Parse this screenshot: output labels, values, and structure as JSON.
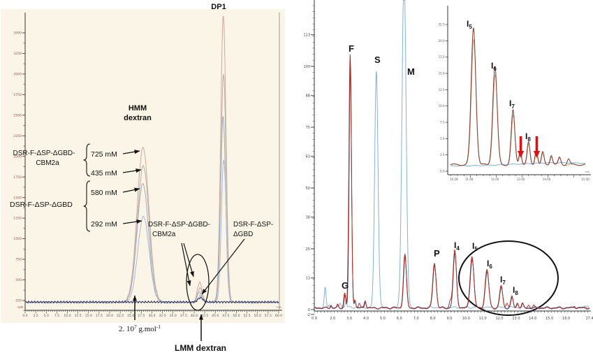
{
  "figure_type": "dual-chromatogram-figure",
  "colors": {
    "left_bg": "#faf5e6",
    "left_traces": [
      "#d2a79e",
      "#b7afa4",
      "#9fa9bd",
      "#aab9d6",
      "#31315e"
    ],
    "right_blue": "#85b1d4",
    "right_red": "#b03026",
    "right_navy": "#3c3c64",
    "inset_red": "#8a3a2a",
    "inset_tan": "#c3a488",
    "red_arrow": "#dd1111",
    "axis": "#333333",
    "left_ytick_color": "#96524a",
    "ellipse_stroke": "#111111"
  },
  "left_panel": {
    "x_unit": "min",
    "x_ticks": [
      "0.0",
      "2.5",
      "5.0",
      "7.5",
      "10.0",
      "12.5",
      "15.0",
      "17.5",
      "20.0",
      "22.5",
      "25.0",
      "27.5",
      "30.0",
      "32.5",
      "35.0",
      "37.5",
      "40.0",
      "42.5",
      "45.0",
      "47.5",
      "50.0",
      "52.5",
      "55.0",
      "57.5",
      "60.0"
    ],
    "y_ticks": [
      "3500",
      "3250",
      "3000",
      "2750",
      "2500",
      "2250",
      "2000",
      "1750",
      "1500",
      "1250",
      "1000",
      "750",
      "500",
      "250"
    ],
    "y_tick_bottom": "-100",
    "annotations": {
      "dp1": "DP1",
      "hmm_line1": "HMM",
      "hmm_line2": "dextran",
      "enzyme1_line1": "DSR-F-ΔSP-ΔGBD-",
      "enzyme1_line2": "CBM2a",
      "enzyme2": "DSR-F-ΔSP-ΔGBD",
      "conc_725": "725 mM",
      "conc_435": "435 mM",
      "conc_580": "580 mM",
      "conc_292": "292 mM",
      "callout1_line1": "DSR-F-ΔSP-ΔGBD-",
      "callout1_line2": "CBM2a",
      "callout2_line1": "DSR-F-ΔSP-",
      "callout2_line2": "ΔGBD",
      "mass": {
        "coef": "2. 10",
        "exp": "7",
        "unit": " g.mol",
        "unit_exp": "-1"
      },
      "lmm": "LMM dextran"
    }
  },
  "right_panel": {
    "x_unit": "min",
    "x_ticks": [
      "0.9",
      "2.0",
      "3.0",
      "4.0",
      "5.0",
      "6.0",
      "7.0",
      "8.0",
      "9.0",
      "10.0",
      "11.0",
      "12.0",
      "13.0",
      "14.0",
      "15.0",
      "16.0",
      "17.4"
    ],
    "y_ticks": [
      "113",
      "100",
      "88",
      "75",
      "63",
      "50",
      "38",
      "25",
      "13",
      "0",
      "-2"
    ],
    "peak_labels": [
      {
        "text": "G"
      },
      {
        "text": "F"
      },
      {
        "text": "S"
      },
      {
        "text": "M"
      },
      {
        "text": "P"
      },
      {
        "base": "I",
        "sub": "4"
      },
      {
        "base": "I",
        "sub": "5"
      },
      {
        "base": "I",
        "sub": "6"
      },
      {
        "base": "I",
        "sub": "7"
      },
      {
        "base": "I",
        "sub": "8"
      }
    ]
  },
  "inset_panel": {
    "x_unit": "min",
    "x_ticks": [
      "10.28",
      "11.00",
      "12.00",
      "13.00",
      "14.00",
      "15.50"
    ],
    "y_ticks": [
      "22.5",
      "20.0",
      "17.5",
      "15.0",
      "12.5",
      "10.0",
      "7.5",
      "5.0",
      "2.5",
      "0.0"
    ],
    "peak_labels": [
      {
        "base": "I",
        "sub": "5"
      },
      {
        "base": "I",
        "sub": "6"
      },
      {
        "base": "I",
        "sub": "7"
      },
      {
        "base": "I",
        "sub": "8"
      }
    ]
  },
  "chart_data": [
    {
      "name": "left-sec-chromatogram",
      "type": "line",
      "xlabel_unit": "min",
      "x_range": [
        0,
        60
      ],
      "y_range": [
        -100,
        3600
      ],
      "grid": false,
      "peaks_legend": "HMM dextran ~27.9 min, LMM dextran ~41.3 min, DP1 ~46.9 min",
      "series": [
        {
          "name": "725 mM (DSR-F-dSP-dGBD-CBM2a)",
          "baseline": 20,
          "peaks": [
            [
              27.9,
              1990,
              1.4
            ],
            [
              41.3,
              260,
              0.55
            ],
            [
              46.9,
              3680,
              0.62
            ]
          ]
        },
        {
          "name": "435 mM (DSR-F-dSP-dGBD-CBM2a)",
          "baseline": 20,
          "peaks": [
            [
              27.95,
              1755,
              1.38
            ],
            [
              41.35,
              185,
              0.55
            ],
            [
              46.95,
              2935,
              0.6
            ]
          ]
        },
        {
          "name": "580 mM (DSR-F-dSP-dGBD)",
          "baseline": 20,
          "peaks": [
            [
              27.85,
              1525,
              1.36
            ],
            [
              41.25,
              135,
              0.5
            ],
            [
              46.85,
              2385,
              0.58
            ]
          ]
        },
        {
          "name": "292 mM (DSR-F-dSP-dGBD)",
          "baseline": 20,
          "peaks": [
            [
              28.0,
              1105,
              1.34
            ],
            [
              41.4,
              90,
              0.5
            ],
            [
              47.0,
              1835,
              0.56
            ]
          ]
        },
        {
          "name": "baseline",
          "baseline": 25,
          "peaks": [
            [
              41.5,
              55,
              0.6
            ]
          ]
        }
      ]
    },
    {
      "name": "right-hpaec-chromatogram",
      "type": "line",
      "xlabel_unit": "min",
      "x_range": [
        0.9,
        17.4
      ],
      "y_range": [
        -2,
        127
      ],
      "grid": false,
      "series": [
        {
          "name": "standards-blue",
          "baseline": 0.9,
          "peaks": [
            [
              1.55,
              8,
              0.05
            ],
            [
              1.8,
              1.2,
              0.04
            ],
            [
              2.45,
              1.8,
              0.05
            ],
            [
              2.8,
              2.2,
              0.05
            ],
            [
              4.62,
              97.5,
              0.1
            ],
            [
              6.28,
              140,
              0.12
            ]
          ]
        },
        {
          "name": "sample-red",
          "baseline": 0.7,
          "peaks": [
            [
              1.9,
              1.2,
              0.04
            ],
            [
              2.3,
              1.2,
              0.04
            ],
            [
              2.72,
              6.2,
              0.055
            ],
            [
              3.05,
              104,
              0.075
            ],
            [
              3.33,
              3.4,
              0.05
            ],
            [
              3.6,
              1.8,
              0.05
            ],
            [
              3.95,
              3.2,
              0.055
            ],
            [
              6.33,
              22,
              0.09
            ],
            [
              8.1,
              18.5,
              0.1
            ],
            [
              9.05,
              2.8,
              0.06
            ],
            [
              9.32,
              23.5,
              0.1
            ],
            [
              10.35,
              21.3,
              0.11
            ],
            [
              11.25,
              15.6,
              0.11
            ],
            [
              12.1,
              9.2,
              0.09
            ],
            [
              12.45,
              2.2,
              0.06
            ],
            [
              12.75,
              4.7,
              0.07
            ],
            [
              13.08,
              2.1,
              0.06
            ],
            [
              13.38,
              1.7,
              0.06
            ],
            [
              13.75,
              1.2,
              0.06
            ],
            [
              14.05,
              1.0,
              0.05
            ],
            [
              16.5,
              0.9,
              0.05
            ]
          ]
        },
        {
          "name": "sample-navy",
          "baseline": 0.6,
          "peaks": [
            [
              1.9,
              1.0,
              0.04
            ],
            [
              2.3,
              1.0,
              0.04
            ],
            [
              2.74,
              5.6,
              0.055
            ],
            [
              3.06,
              100,
              0.07
            ],
            [
              3.34,
              3.0,
              0.05
            ],
            [
              3.96,
              2.8,
              0.05
            ],
            [
              6.34,
              21,
              0.09
            ],
            [
              8.11,
              17.8,
              0.1
            ],
            [
              9.33,
              22.3,
              0.1
            ],
            [
              10.36,
              20.2,
              0.11
            ],
            [
              11.26,
              14.8,
              0.11
            ],
            [
              12.11,
              8.6,
              0.09
            ],
            [
              12.76,
              4.3,
              0.07
            ],
            [
              13.09,
              1.9,
              0.06
            ],
            [
              13.39,
              1.5,
              0.06
            ],
            [
              16.5,
              0.8,
              0.05
            ]
          ]
        }
      ],
      "peak_assignments": {
        "G": 2.72,
        "F": 3.05,
        "S": 4.62,
        "M": 6.3,
        "P": 8.1,
        "I4": 9.32,
        "I5": 10.35,
        "I6": 11.25,
        "I7": 12.1,
        "I8": 12.75
      }
    },
    {
      "name": "inset-zoom-chromatogram",
      "type": "line",
      "xlabel_unit": "min",
      "x_range": [
        10.28,
        15.5
      ],
      "y_range": [
        0,
        23.5
      ],
      "grid": false,
      "series": [
        {
          "name": "zoom-dark-red",
          "baseline": 1.0,
          "peaks": [
            [
              11.17,
              21.0,
              0.09
            ],
            [
              12.0,
              15.0,
              0.085
            ],
            [
              12.7,
              8.3,
              0.07
            ],
            [
              12.98,
              2.2,
              0.05
            ],
            [
              13.3,
              3.4,
              0.055
            ],
            [
              13.6,
              2.4,
              0.05
            ],
            [
              13.85,
              1.9,
              0.05
            ],
            [
              14.18,
              1.5,
              0.05
            ],
            [
              14.5,
              1.1,
              0.05
            ],
            [
              14.85,
              0.9,
              0.05
            ]
          ]
        },
        {
          "name": "zoom-tan",
          "baseline": 1.0,
          "peaks": [
            [
              11.18,
              19.2,
              0.09
            ],
            [
              12.01,
              13.8,
              0.085
            ],
            [
              12.71,
              7.5,
              0.07
            ],
            [
              12.99,
              2.0,
              0.05
            ],
            [
              13.31,
              3.1,
              0.055
            ],
            [
              13.61,
              2.1,
              0.05
            ],
            [
              13.86,
              1.7,
              0.05
            ],
            [
              14.19,
              1.3,
              0.05
            ],
            [
              14.51,
              1.0,
              0.05
            ]
          ]
        },
        {
          "name": "zoom-blue-baseline",
          "baseline": 0.8,
          "peaks": [
            [
              14.5,
              0.5,
              1.6
            ]
          ]
        }
      ],
      "red_arrow_positions_min": [
        13.0,
        13.62
      ]
    }
  ]
}
